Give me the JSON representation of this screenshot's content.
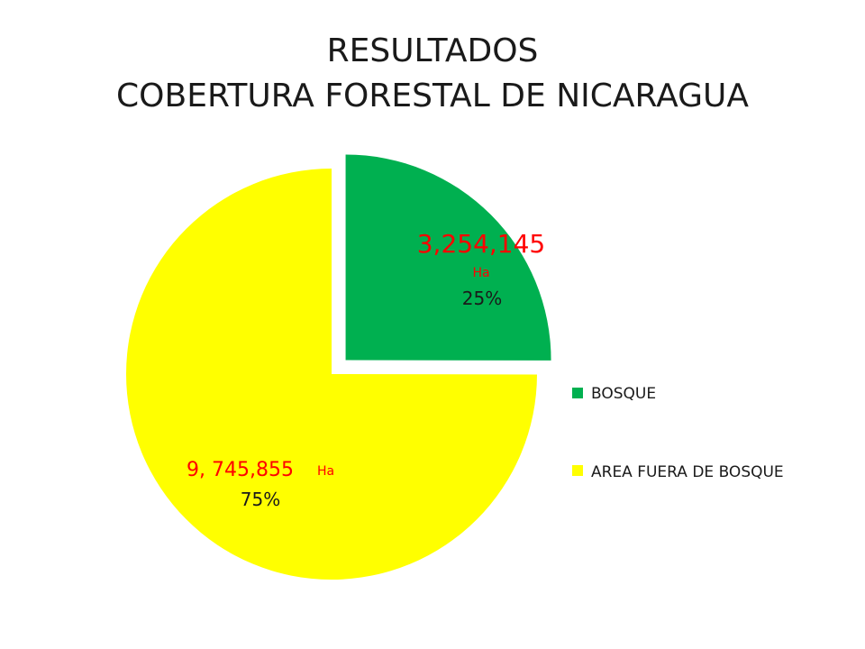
{
  "title": {
    "line1": "RESULTADOS",
    "line2": "COBERTURA FORESTAL DE NICARAGUA"
  },
  "chart_data": {
    "type": "pie",
    "series": [
      {
        "name": "BOSQUE",
        "value": 3254145,
        "percent": 25,
        "color": "#00b050",
        "value_label": "3,254,145",
        "unit_label": "Ha",
        "percent_label": "25%"
      },
      {
        "name": "AREA FUERA DE BOSQUE",
        "value": 9745855,
        "percent": 75,
        "color": "#ffff00",
        "value_label": "9, 745,855",
        "unit_label": "Ha",
        "percent_label": "75%"
      }
    ],
    "legend_position": "right",
    "exploded_slice": "BOSQUE"
  }
}
